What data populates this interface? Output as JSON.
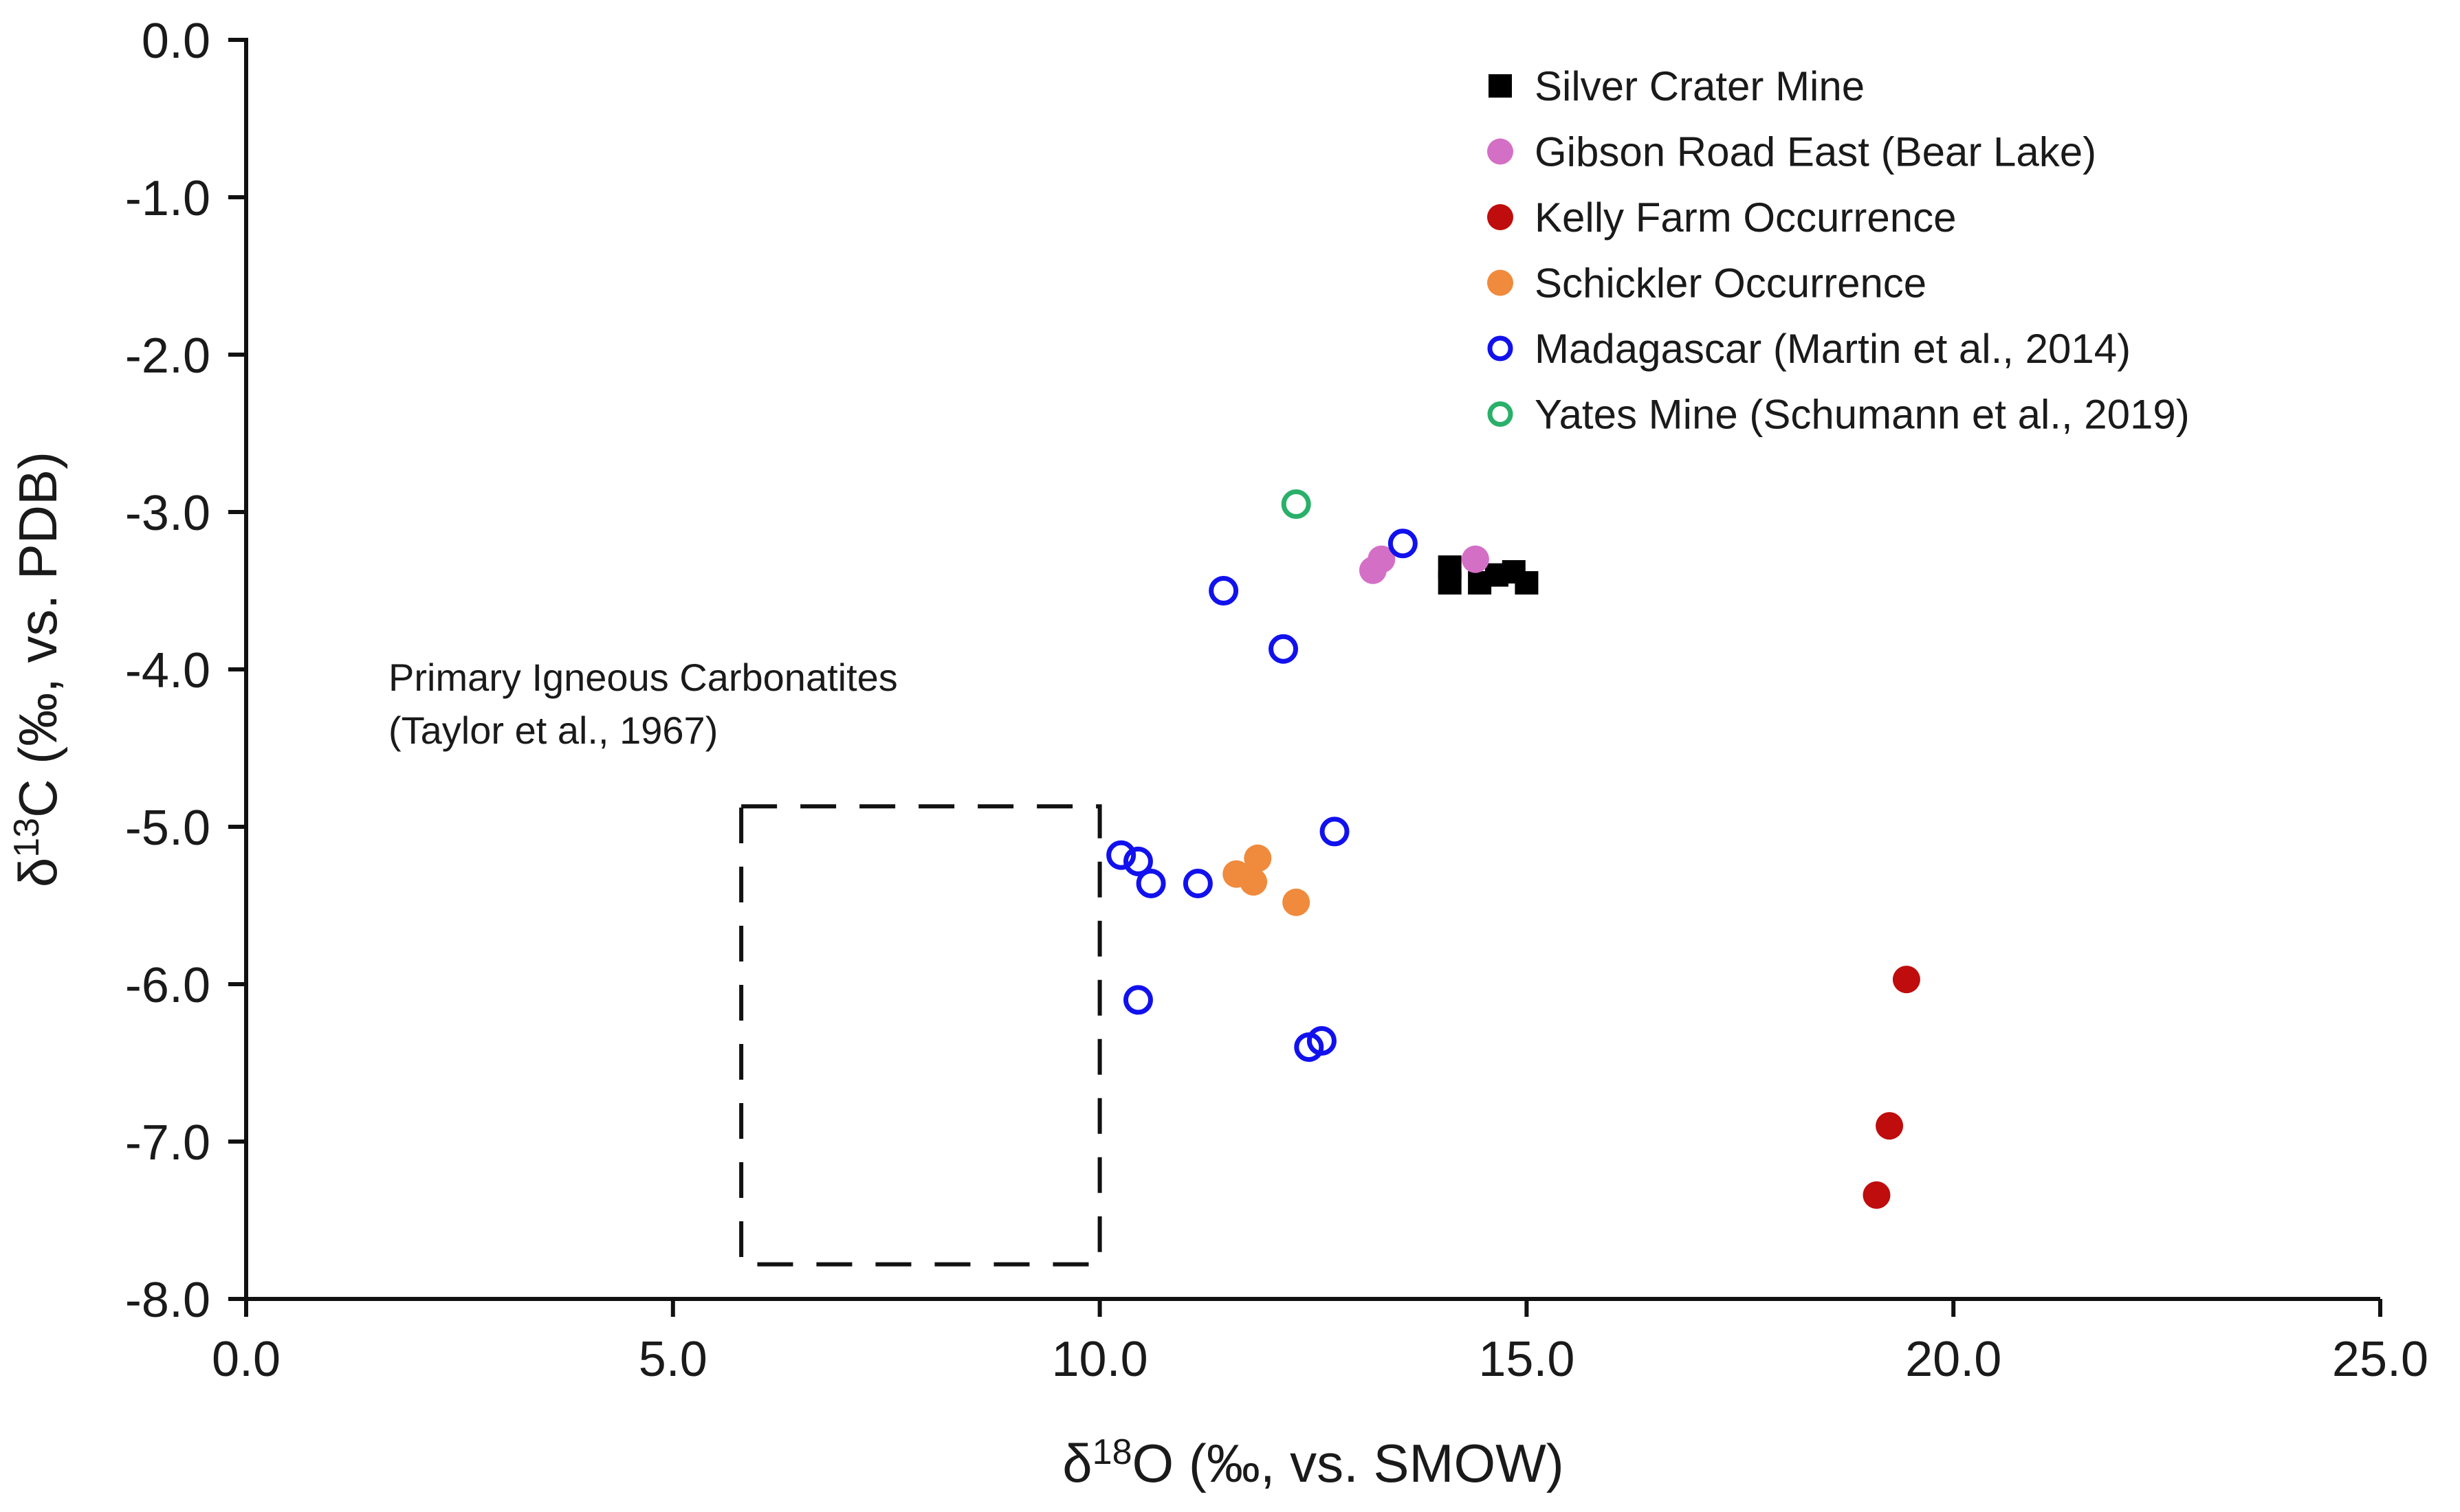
{
  "chart_data": {
    "type": "scatter",
    "xlabel_main": "δ",
    "xlabel_sup": "18",
    "xlabel_rest": "O (‰, vs. SMOW)",
    "ylabel_main": "δ",
    "ylabel_sup": "13",
    "ylabel_rest": "C (‰, vs. PDB)",
    "xlim": [
      0,
      25
    ],
    "ylim": [
      -8,
      0
    ],
    "xticks": [
      "0.0",
      "5.0",
      "10.0",
      "15.0",
      "20.0",
      "25.0"
    ],
    "yticks": [
      "0.0",
      "-1.0",
      "-2.0",
      "-3.0",
      "-4.0",
      "-5.0",
      "-6.0",
      "-7.0",
      "-8.0"
    ],
    "xtick_values": [
      0,
      5,
      10,
      15,
      20,
      25
    ],
    "ytick_values": [
      0,
      -1,
      -2,
      -3,
      -4,
      -5,
      -6,
      -7,
      -8
    ],
    "legend_position": "top-right",
    "series": [
      {
        "name": "Silver Crater Mine",
        "marker": "square",
        "filled": true,
        "color": "#000000",
        "points": [
          [
            14.1,
            -3.35
          ],
          [
            14.1,
            -3.45
          ],
          [
            14.45,
            -3.45
          ],
          [
            14.65,
            -3.4
          ],
          [
            14.85,
            -3.38
          ],
          [
            15.0,
            -3.45
          ]
        ]
      },
      {
        "name": "Gibson Road East (Bear Lake)",
        "marker": "circle",
        "filled": true,
        "color": "#d46fc6",
        "points": [
          [
            13.2,
            -3.37
          ],
          [
            13.3,
            -3.3
          ],
          [
            14.4,
            -3.3
          ]
        ]
      },
      {
        "name": "Kelly Farm Occurrence",
        "marker": "circle",
        "filled": true,
        "color": "#bf0c0c",
        "points": [
          [
            19.45,
            -5.97
          ],
          [
            19.25,
            -6.9
          ],
          [
            19.1,
            -7.34
          ]
        ]
      },
      {
        "name": "Schickler Occurrence",
        "marker": "circle",
        "filled": true,
        "color": "#f08a3c",
        "points": [
          [
            11.6,
            -5.3
          ],
          [
            11.85,
            -5.2
          ],
          [
            11.8,
            -5.35
          ],
          [
            12.3,
            -5.48
          ]
        ]
      },
      {
        "name": "Madagascar (Martin et al., 2014)",
        "marker": "circle",
        "filled": false,
        "color": "#1111ee",
        "points": [
          [
            13.55,
            -3.2
          ],
          [
            11.45,
            -3.5
          ],
          [
            12.15,
            -3.87
          ],
          [
            12.75,
            -5.03
          ],
          [
            10.25,
            -5.18
          ],
          [
            10.45,
            -5.22
          ],
          [
            10.6,
            -5.36
          ],
          [
            11.15,
            -5.36
          ],
          [
            10.45,
            -6.1
          ],
          [
            12.45,
            -6.4
          ],
          [
            12.6,
            -6.36
          ]
        ]
      },
      {
        "name": "Yates Mine (Schumann et al., 2019)",
        "marker": "circle",
        "filled": false,
        "color": "#29b06a",
        "points": [
          [
            12.3,
            -2.95
          ]
        ]
      }
    ],
    "annotations": [
      {
        "label_line1": "Primary Igneous Carbonatites",
        "label_line2": "(Taylor et al., 1967)",
        "box_x": [
          5.8,
          10.0
        ],
        "box_y": [
          -7.78,
          -4.87
        ]
      }
    ]
  }
}
